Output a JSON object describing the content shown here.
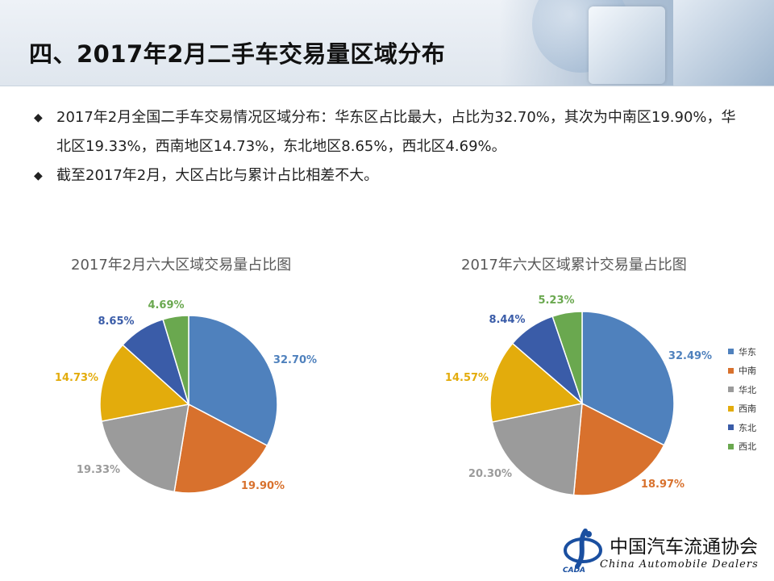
{
  "header": {
    "title": "四、2017年2月二手车交易量区域分布"
  },
  "bullets": [
    {
      "text": "2017年2月全国二手车交易情况区域分布：华东区占比最大，占比为32.70%，其次为中南区19.90%，华北区19.33%，西南地区14.73%，东北地区8.65%，西北区4.69%。"
    },
    {
      "text": "截至2017年2月，大区占比与累计占比相差不大。"
    }
  ],
  "bullet_mark": "◆",
  "colors": {
    "华东": "#4f81bd",
    "中南": "#d8712d",
    "华北": "#9b9b9b",
    "西南": "#e3ac0c",
    "东北": "#3a5ca8",
    "西北": "#6aa84f"
  },
  "chart_data": [
    {
      "type": "pie",
      "title": "2017年2月六大区域交易量占比图",
      "categories": [
        "华东",
        "中南",
        "华北",
        "西南",
        "东北",
        "西北"
      ],
      "values": [
        32.7,
        19.9,
        19.33,
        14.73,
        8.65,
        4.69
      ],
      "labels": [
        "32.70%",
        "19.90%",
        "19.33%",
        "14.73%",
        "8.65%",
        "4.69%"
      ],
      "legend": false
    },
    {
      "type": "pie",
      "title": "2017年六大区域累计交易量占比图",
      "categories": [
        "华东",
        "中南",
        "华北",
        "西南",
        "东北",
        "西北"
      ],
      "values": [
        32.49,
        18.97,
        20.3,
        14.57,
        8.44,
        5.23
      ],
      "labels": [
        "32.49%",
        "18.97%",
        "20.30%",
        "14.57%",
        "8.44%",
        "5.23%"
      ],
      "legend": "right"
    }
  ],
  "legend": {
    "items": [
      "华东",
      "中南",
      "华北",
      "西南",
      "东北",
      "西北"
    ]
  },
  "logo": {
    "cn": "中国汽车流通协会",
    "en": "China  Automobile Dealers",
    "abbr": "CADA"
  }
}
